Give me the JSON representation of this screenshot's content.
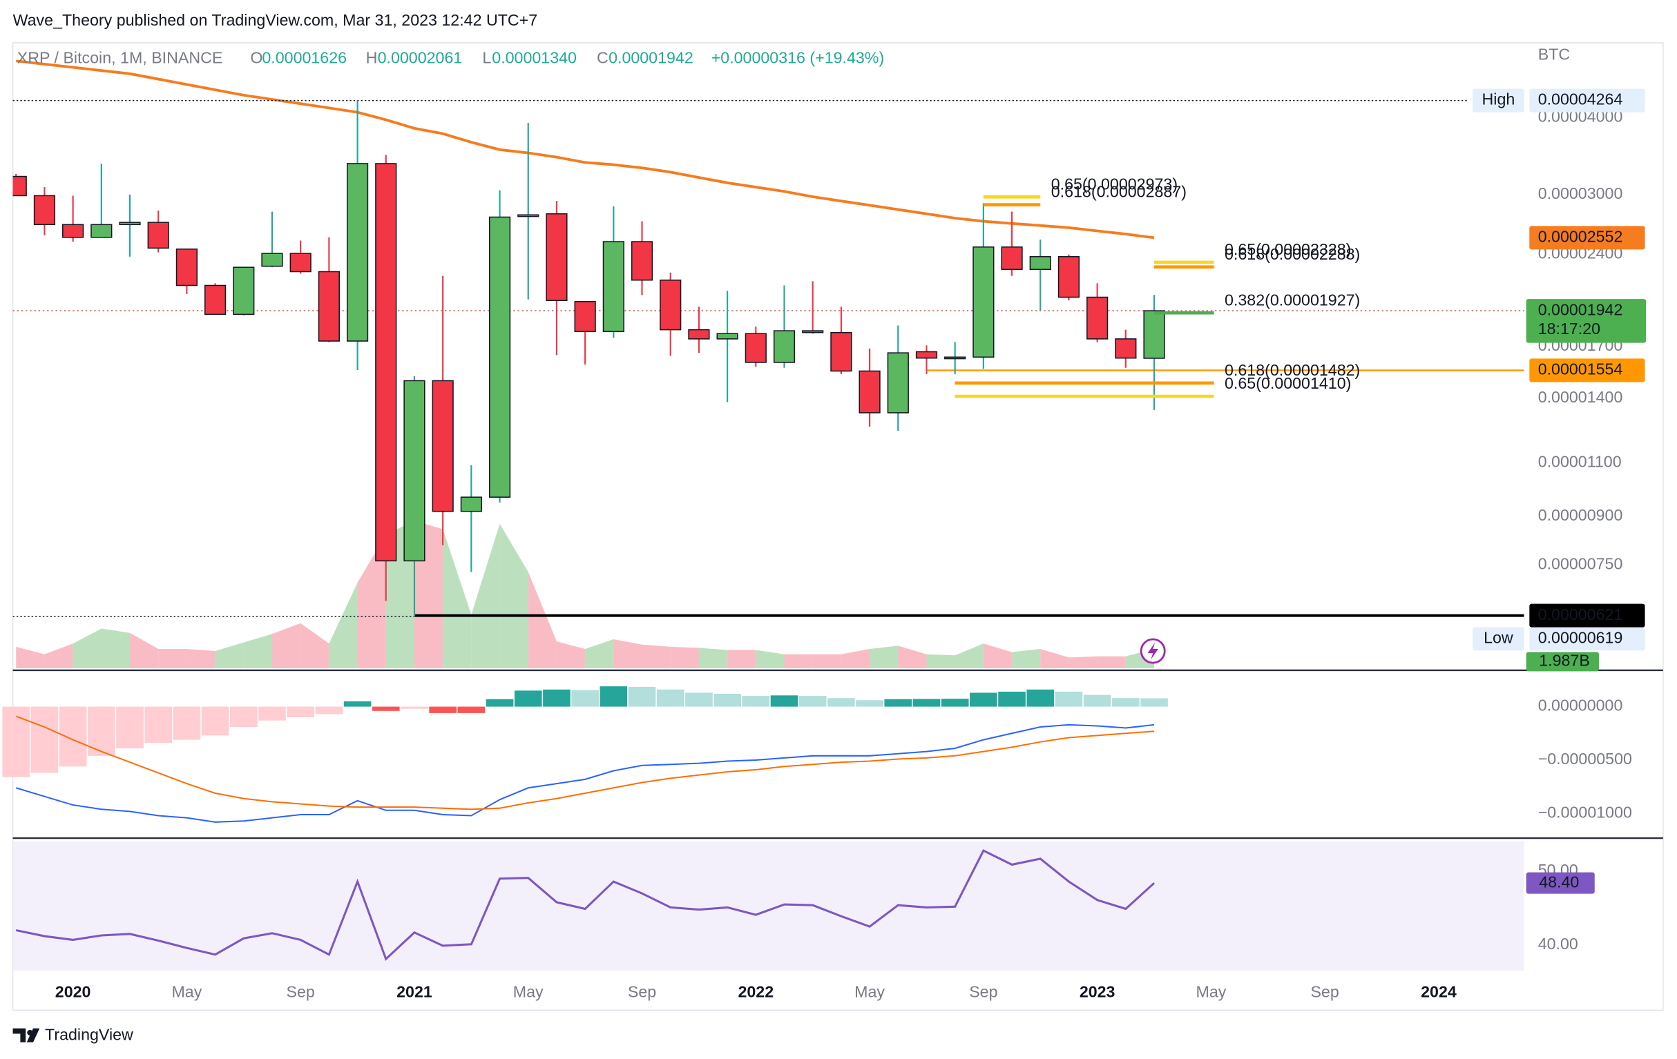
{
  "header": {
    "publisher": "Wave_Theory published on TradingView.com, Mar 31, 2023 12:42 UTC+7"
  },
  "footer": {
    "brand": "TradingView"
  },
  "chart_data": [
    {
      "type": "candlestick",
      "legend": {
        "title": "XRP / Bitcoin, 1M, BINANCE",
        "fields": [
          "O",
          "H",
          "L",
          "C"
        ],
        "values": [
          "0.00001626",
          "0.00002061",
          "0.00001340",
          "0.00001942"
        ],
        "change": "+0.00000316 (+19.43%)"
      },
      "unit": "BTC",
      "log_scale": true,
      "grid": false,
      "xlim": [
        -0.113,
        53.0
      ],
      "xticks": [
        {
          "value": 2,
          "label": "2020"
        },
        {
          "value": 6,
          "label": "May"
        },
        {
          "value": 10,
          "label": "Sep"
        },
        {
          "value": 14,
          "label": "2021"
        },
        {
          "value": 18,
          "label": "May"
        },
        {
          "value": 22,
          "label": "Sep"
        },
        {
          "value": 26,
          "label": "2022"
        },
        {
          "value": 30,
          "label": "May"
        },
        {
          "value": 34,
          "label": "Sep"
        },
        {
          "value": 38,
          "label": "2023"
        },
        {
          "value": 42,
          "label": "May"
        },
        {
          "value": 46,
          "label": "Sep"
        },
        {
          "value": 50,
          "label": "2024"
        }
      ],
      "ylim": [
        5.06e-06,
        5.292e-05
      ],
      "yticks": [
        {
          "value": 4e-05,
          "label": "0.00004000"
        },
        {
          "value": 3e-05,
          "label": "0.00003000"
        },
        {
          "value": 2.4e-05,
          "label": "0.00002400"
        },
        {
          "value": 1.7e-05,
          "label": "0.00001700"
        },
        {
          "value": 1.4e-05,
          "label": "0.00001400"
        },
        {
          "value": 1.1e-05,
          "label": "0.00001100"
        },
        {
          "value": 9e-06,
          "label": "0.00000900"
        },
        {
          "value": 7.5e-06,
          "label": "0.00000750"
        }
      ],
      "up_color": "#5cb860",
      "down_color": "#f23645",
      "candles": {
        "open": [
          3.21e-05,
          2.987e-05,
          2.681e-05,
          2.556e-05,
          2.681e-05,
          2.703e-05,
          2.446e-05,
          2.135e-05,
          1.916e-05,
          2.294e-05,
          2.407e-05,
          2.248e-05,
          1.734e-05,
          3.368e-05,
          7.62e-06,
          1.495e-05,
          9.17e-06,
          9.67e-06,
          2.769e-05,
          2.791e-05,
          2.01e-05,
          1.797e-05,
          2.515e-05,
          2.178e-05,
          1.809e-05,
          1.748e-05,
          1.783e-05,
          1.601e-05,
          1.802e-05,
          1.79e-05,
          1.55e-05,
          1.326e-05,
          1.666e-05,
          1.627e-05,
          1.633e-05,
          2.465e-05,
          2.267e-05,
          2.378e-05,
          2.043e-05,
          1.748e-05,
          1.626e-05
        ],
        "high": [
          3.24e-05,
          3.084e-05,
          2.987e-05,
          3.368e-05,
          2.999e-05,
          2.824e-05,
          2.446e-05,
          2.152e-05,
          2.285e-05,
          2.813e-05,
          2.525e-05,
          2.556e-05,
          4.264e-05,
          3.478e-05,
          1.52e-05,
          2.213e-05,
          1.09e-05,
          3.048e-05,
          3.921e-05,
          2.928e-05,
          2.01e-05,
          2.87e-05,
          2.714e-05,
          2.24e-05,
          1.971e-05,
          2.092e-05,
          1.83e-05,
          2.135e-05,
          2.169e-05,
          1.971e-05,
          1.686e-05,
          1.838e-05,
          1.706e-05,
          1.727e-05,
          2.904e-05,
          2.813e-05,
          2.535e-05,
          2.397e-05,
          2.152e-05,
          1.809e-05,
          2.061e-05
        ],
        "low": [
          2.987e-05,
          2.576e-05,
          2.515e-05,
          2.556e-05,
          2.378e-05,
          2.416e-05,
          2.068e-05,
          1.916e-05,
          1.909e-05,
          2.285e-05,
          2.231e-05,
          1.727e-05,
          1.556e-05,
          6.56e-06,
          6.19e-06,
          8.08e-06,
          7.31e-06,
          9.48e-06,
          2.026e-05,
          1.646e-05,
          1.588e-05,
          1.755e-05,
          2.059e-05,
          1.64e-05,
          1.659e-05,
          1.38e-05,
          1.575e-05,
          1.569e-05,
          1.783e-05,
          1.532e-05,
          1.259e-05,
          1.239e-05,
          1.532e-05,
          1.532e-05,
          1.563e-05,
          2.213e-05,
          1.947e-05,
          2.018e-05,
          1.727e-05,
          1.569e-05,
          1.34e-05
        ],
        "close": [
          2.987e-05,
          2.681e-05,
          2.556e-05,
          2.681e-05,
          2.703e-05,
          2.455e-05,
          2.135e-05,
          1.916e-05,
          2.285e-05,
          2.407e-05,
          2.248e-05,
          1.734e-05,
          3.368e-05,
          7.62e-06,
          1.495e-05,
          9.17e-06,
          9.67e-06,
          2.757e-05,
          2.78e-05,
          2.018e-05,
          1.797e-05,
          2.515e-05,
          2.178e-05,
          1.809e-05,
          1.748e-05,
          1.783e-05,
          1.601e-05,
          1.802e-05,
          1.79e-05,
          1.55e-05,
          1.326e-05,
          1.659e-05,
          1.627e-05,
          1.633e-05,
          2.465e-05,
          2.267e-05,
          2.378e-05,
          2.043e-05,
          1.748e-05,
          1.627e-05,
          1.942e-05
        ]
      },
      "last_price": {
        "countdown": "18:17:20",
        "color": "#4caf50",
        "line_color": "#c0504d"
      },
      "ema": {
        "color": "#f57c1f",
        "values": [
          4.945e-05,
          4.886e-05,
          4.827e-05,
          4.77e-05,
          4.713e-05,
          4.62e-05,
          4.528e-05,
          4.438e-05,
          4.35e-05,
          4.282e-05,
          4.214e-05,
          4.147e-05,
          4.081e-05,
          3.968e-05,
          3.843e-05,
          3.767e-05,
          3.648e-05,
          3.548e-05,
          3.505e-05,
          3.45e-05,
          3.382e-05,
          3.354e-05,
          3.314e-05,
          3.262e-05,
          3.197e-05,
          3.134e-05,
          3.084e-05,
          3.035e-05,
          2.975e-05,
          2.928e-05,
          2.882e-05,
          2.836e-05,
          2.791e-05,
          2.746e-05,
          2.714e-05,
          2.692e-05,
          2.671e-05,
          2.65e-05,
          2.618e-05,
          2.587e-05,
          2.552e-05
        ]
      },
      "markers": [
        {
          "label": "High",
          "value": 4.264e-05,
          "x_from": -0.113
        },
        {
          "label": "Low",
          "value": 6.19e-06,
          "x_from": -0.113,
          "x_to": 14
        }
      ],
      "hlines": [
        {
          "value": 1.554e-05,
          "color": "#ff9800",
          "text_color": "#131722",
          "x_from": 32
        },
        {
          "value": 6.21e-06,
          "color": "#000000",
          "text_color": "#ffffff",
          "x_from": 14
        }
      ],
      "fib_levels": [
        {
          "text": "0.65(0.00002973)",
          "value": 2.973e-05,
          "color": "#f9d71c",
          "x_from": 34,
          "x_to": 36
        },
        {
          "text": "0.618(0.00002887)",
          "value": 2.887e-05,
          "color": "#ff9800",
          "x_from": 34,
          "x_to": 36
        },
        {
          "text": "0.65(0.00002328)",
          "value": 2.328e-05,
          "color": "#f9d71c",
          "x_from": 40,
          "x_to": 42.1
        },
        {
          "text": "0.618(0.00002288)",
          "value": 2.288e-05,
          "color": "#ff9800",
          "x_from": 40,
          "x_to": 42.1
        },
        {
          "text": "0.382(0.00001927)",
          "value": 1.927e-05,
          "color": "#4caf50",
          "x_from": 40,
          "x_to": 42.1
        },
        {
          "text": "0.618(0.00001482)",
          "value": 1.482e-05,
          "color": "#ff9800",
          "x_from": 33,
          "x_to": 42.1
        },
        {
          "text": "0.65(0.00001410)",
          "value": 1.41e-05,
          "color": "#f9d71c",
          "x_from": 33,
          "x_to": 42.1
        }
      ],
      "volume": {
        "up_color": "#a5d6a7",
        "down_color": "#f8a5b0",
        "label_color": "#4caf50",
        "values": [
          2.2,
          1.43,
          2.53,
          4.07,
          3.63,
          1.98,
          1.98,
          1.76,
          2.64,
          3.52,
          4.62,
          2.53,
          8.8,
          13.75,
          15.18,
          14.3,
          5.5,
          14.85,
          9.9,
          2.75,
          1.98,
          2.97,
          2.42,
          2.2,
          2.09,
          1.87,
          1.87,
          1.43,
          1.43,
          1.43,
          1.98,
          2.31,
          1.43,
          1.32,
          2.53,
          1.65,
          1.98,
          1.1,
          1.21,
          1.21,
          1.987
        ],
        "value_labels": {
          "40": "1.987B"
        }
      }
    },
    {
      "type": "macd",
      "ylim": [
        -1.22e-05,
        3.4e-06
      ],
      "yticks": [
        {
          "value": 0,
          "label": "0.00000000"
        },
        {
          "value": -5e-06,
          "label": "−0.00000500"
        },
        {
          "value": -1e-05,
          "label": "−0.00001000"
        }
      ],
      "colors": {
        "pos_up": "#26a69a",
        "pos_down": "#b2dfdb",
        "neg_down": "#ff5252",
        "neg_up": "#ffcdd2"
      },
      "histogram": [
        -6.6e-06,
        -6.2e-06,
        -5.6e-06,
        -4.6e-06,
        -3.9e-06,
        -3.4e-06,
        -3.1e-06,
        -2.7e-06,
        -1.9e-06,
        -1.3e-06,
        -1e-06,
        -7e-07,
        5e-07,
        -4e-07,
        -2e-07,
        -6e-07,
        -6e-07,
        7e-07,
        1.5e-06,
        1.6e-06,
        1.55e-06,
        1.9e-06,
        1.85e-06,
        1.6e-06,
        1.3e-06,
        1.2e-06,
        1e-06,
        1.05e-06,
        1e-06,
        8e-07,
        6e-07,
        7e-07,
        7.2e-07,
        7.4e-07,
        1.3e-06,
        1.4e-06,
        1.6e-06,
        1.4e-06,
        1.1e-06,
        8e-07,
        7.8e-07
      ],
      "series": [
        {
          "color": "#2962ff",
          "values": [
            -7.6e-06,
            -8.4e-06,
            -9.2e-06,
            -9.6e-06,
            -9.8e-06,
            -1.02e-05,
            -1.04e-05,
            -1.08e-05,
            -1.07e-05,
            -1.04e-05,
            -1.01e-05,
            -1.01e-05,
            -8.8e-06,
            -9.7e-06,
            -9.7e-06,
            -1.01e-05,
            -1.02e-05,
            -8.7e-06,
            -7.6e-06,
            -7.2e-06,
            -6.8e-06,
            -6e-06,
            -5.5e-06,
            -5.4e-06,
            -5.3e-06,
            -5.1e-06,
            -5e-06,
            -4.8e-06,
            -4.6e-06,
            -4.6e-06,
            -4.6e-06,
            -4.4e-06,
            -4.2e-06,
            -3.9e-06,
            -3.1e-06,
            -2.5e-06,
            -1.9e-06,
            -1.7e-06,
            -1.8e-06,
            -2e-06,
            -1.7e-06
          ]
        },
        {
          "color": "#ff6d00",
          "values": [
            -9e-07,
            -1.9e-06,
            -3.1e-06,
            -4.2e-06,
            -5.2e-06,
            -6.2e-06,
            -7.2e-06,
            -8.1e-06,
            -8.6e-06,
            -8.9e-06,
            -9.1e-06,
            -9.3e-06,
            -9.4e-06,
            -9.4e-06,
            -9.4e-06,
            -9.5e-06,
            -9.6e-06,
            -9.5e-06,
            -9e-06,
            -8.6e-06,
            -8.1e-06,
            -7.6e-06,
            -7.1e-06,
            -6.7e-06,
            -6.4e-06,
            -6.1e-06,
            -5.9e-06,
            -5.6e-06,
            -5.4e-06,
            -5.2e-06,
            -5.1e-06,
            -4.9e-06,
            -4.8e-06,
            -4.6e-06,
            -4.2e-06,
            -3.8e-06,
            -3.3e-06,
            -2.9e-06,
            -2.7e-06,
            -2.5e-06,
            -2.3e-06
          ]
        }
      ]
    },
    {
      "type": "rsi",
      "ylim": [
        36.52,
        54.06
      ],
      "yticks": [
        {
          "value": 50,
          "label": "50.00"
        },
        {
          "value": 40,
          "label": "40.00"
        }
      ],
      "color": "#7e57c2",
      "background": "#f3f0fb",
      "values": [
        42.0,
        41.2,
        40.7,
        41.3,
        41.5,
        40.6,
        39.6,
        38.7,
        40.9,
        41.6,
        40.7,
        38.7,
        48.6,
        38.1,
        41.7,
        39.9,
        40.1,
        49.0,
        49.1,
        45.8,
        44.9,
        48.6,
        47.0,
        45.1,
        44.8,
        45.1,
        44.1,
        45.5,
        45.4,
        43.9,
        42.5,
        45.4,
        45.1,
        45.2,
        52.8,
        50.9,
        51.7,
        48.6,
        46.1,
        44.9,
        48.4
      ],
      "value_labels": {
        "40": "48.40"
      }
    }
  ]
}
